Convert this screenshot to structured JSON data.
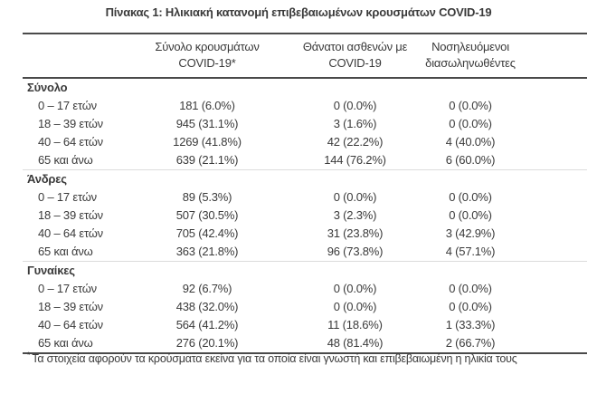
{
  "page": {
    "background": "#ffffff",
    "text_color": "#3a3a3a",
    "rule_color": "#4a4a4a",
    "separator_color": "#dcdcdc"
  },
  "title": "Πίνακας 1: Ηλικιακή κατανομή επιβεβαιωμένων κρουσμάτων COVID-19",
  "table": {
    "columns": [
      {
        "lines": [
          "Σύνολο κρουσμάτων",
          "COVID-19*"
        ]
      },
      {
        "lines": [
          "Θάνατοι ασθενών με",
          "COVID-19"
        ]
      },
      {
        "lines": [
          "Νοσηλευόμενοι",
          "διασωληνωθέντες"
        ]
      }
    ],
    "groups": [
      {
        "label": "Σύνολο",
        "rows": [
          {
            "age": "0 – 17 ετών",
            "cases": "181 (6.0%)",
            "deaths": "0 (0.0%)",
            "intubated": "0 (0.0%)"
          },
          {
            "age": "18 – 39 ετών",
            "cases": "945 (31.1%)",
            "deaths": "3 (1.6%)",
            "intubated": "0 (0.0%)"
          },
          {
            "age": "40 – 64 ετών",
            "cases": "1269 (41.8%)",
            "deaths": "42 (22.2%)",
            "intubated": "4 (40.0%)"
          },
          {
            "age": "65 και άνω",
            "cases": "639 (21.1%)",
            "deaths": "144 (76.2%)",
            "intubated": "6 (60.0%)"
          }
        ]
      },
      {
        "label": "Άνδρες",
        "rows": [
          {
            "age": "0 – 17 ετών",
            "cases": "89 (5.3%)",
            "deaths": "0 (0.0%)",
            "intubated": "0 (0.0%)"
          },
          {
            "age": "18 – 39 ετών",
            "cases": "507 (30.5%)",
            "deaths": "3 (2.3%)",
            "intubated": "0 (0.0%)"
          },
          {
            "age": "40 – 64 ετών",
            "cases": "705 (42.4%)",
            "deaths": "31 (23.8%)",
            "intubated": "3 (42.9%)"
          },
          {
            "age": "65 και άνω",
            "cases": "363 (21.8%)",
            "deaths": "96 (73.8%)",
            "intubated": "4 (57.1%)"
          }
        ]
      },
      {
        "label": "Γυναίκες",
        "rows": [
          {
            "age": "0 – 17 ετών",
            "cases": "92 (6.7%)",
            "deaths": "0 (0.0%)",
            "intubated": "0 (0.0%)"
          },
          {
            "age": "18 – 39 ετών",
            "cases": "438 (32.0%)",
            "deaths": "0 (0.0%)",
            "intubated": "0 (0.0%)"
          },
          {
            "age": "40 – 64 ετών",
            "cases": "564 (41.2%)",
            "deaths": "11 (18.6%)",
            "intubated": "1 (33.3%)"
          },
          {
            "age": "65 και άνω",
            "cases": "276 (20.1%)",
            "deaths": "48 (81.4%)",
            "intubated": "2 (66.7%)"
          }
        ]
      }
    ]
  },
  "footnote": {
    "marker": "*",
    "text": "Τα στοιχεία αφορούν τα κρούσματα εκείνα για τα οποία είναι γνωστή και επιβεβαιωμένη η ηλικία τους"
  }
}
